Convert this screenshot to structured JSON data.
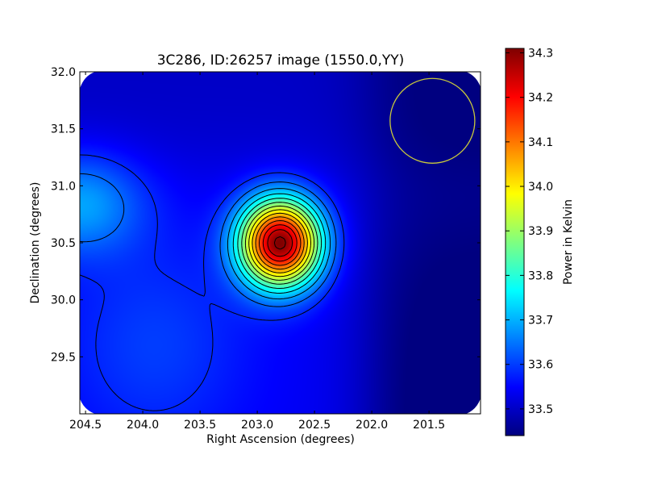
{
  "chart_data": {
    "type": "heatmap",
    "title": "3C286, ID:26257 image (1550.0,YY)",
    "xlabel": "Right Ascension (degrees)",
    "ylabel": "Declination (degrees)",
    "colorbar_label": "Power in Kelvin",
    "xlim": [
      204.55,
      201.05
    ],
    "ylim": [
      29.0,
      32.0
    ],
    "x_ticks": [
      "204.5",
      "204.0",
      "203.5",
      "203.0",
      "202.5",
      "202.0",
      "201.5"
    ],
    "x_tick_values": [
      204.5,
      204.0,
      203.5,
      203.0,
      202.5,
      202.0,
      201.5
    ],
    "y_ticks": [
      "29.5",
      "30.0",
      "30.5",
      "31.0",
      "31.5",
      "32.0"
    ],
    "y_tick_values": [
      29.5,
      30.0,
      30.5,
      31.0,
      31.5,
      32.0
    ],
    "colorbar_range": [
      33.44,
      34.31
    ],
    "colorbar_ticks": [
      "33.5",
      "33.6",
      "33.7",
      "33.8",
      "33.9",
      "34.0",
      "34.1",
      "34.2",
      "34.3"
    ],
    "colorbar_tick_values": [
      33.5,
      33.6,
      33.7,
      33.8,
      33.9,
      34.0,
      34.1,
      34.2,
      34.3
    ],
    "colormap": "jet",
    "contours": true,
    "grid": false,
    "peak": {
      "ra": 202.8,
      "dec": 30.5,
      "value": 34.31
    },
    "beam_circle": {
      "ra": 201.47,
      "dec": 31.57,
      "radius_deg": 0.37,
      "color": "#c8c83c"
    }
  }
}
